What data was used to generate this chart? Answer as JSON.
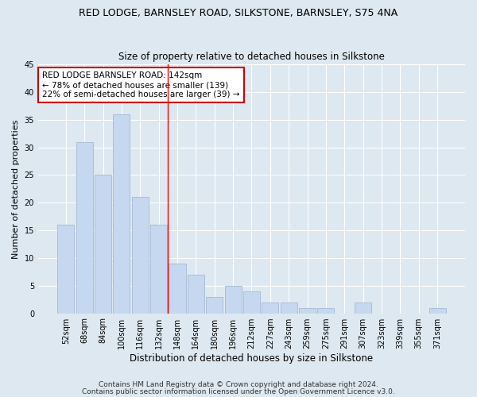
{
  "title": "RED LODGE, BARNSLEY ROAD, SILKSTONE, BARNSLEY, S75 4NA",
  "subtitle": "Size of property relative to detached houses in Silkstone",
  "xlabel": "Distribution of detached houses by size in Silkstone",
  "ylabel": "Number of detached properties",
  "categories": [
    "52sqm",
    "68sqm",
    "84sqm",
    "100sqm",
    "116sqm",
    "132sqm",
    "148sqm",
    "164sqm",
    "180sqm",
    "196sqm",
    "212sqm",
    "227sqm",
    "243sqm",
    "259sqm",
    "275sqm",
    "291sqm",
    "307sqm",
    "323sqm",
    "339sqm",
    "355sqm",
    "371sqm"
  ],
  "values": [
    16,
    31,
    25,
    36,
    21,
    16,
    9,
    7,
    3,
    5,
    4,
    2,
    2,
    1,
    1,
    0,
    2,
    0,
    0,
    0,
    1
  ],
  "bar_color": "#c5d8f0",
  "bar_edgecolor": "#aabfd8",
  "reference_line_x": 6.0,
  "annotation_text": "RED LODGE BARNSLEY ROAD: 142sqm\n← 78% of detached houses are smaller (139)\n22% of semi-detached houses are larger (39) →",
  "annotation_box_facecolor": "#ffffff",
  "annotation_box_edgecolor": "#cc0000",
  "annotation_text_fontsize": 7.5,
  "ylim": [
    0,
    45
  ],
  "yticks": [
    0,
    5,
    10,
    15,
    20,
    25,
    30,
    35,
    40,
    45
  ],
  "background_color": "#dde8f0",
  "plot_background": "#dde8f0",
  "grid_color": "#ffffff",
  "title_fontsize": 9,
  "subtitle_fontsize": 8.5,
  "xlabel_fontsize": 8.5,
  "ylabel_fontsize": 8,
  "tick_fontsize": 7,
  "footer_line1": "Contains HM Land Registry data © Crown copyright and database right 2024.",
  "footer_line2": "Contains public sector information licensed under the Open Government Licence v3.0.",
  "footer_fontsize": 6.5
}
